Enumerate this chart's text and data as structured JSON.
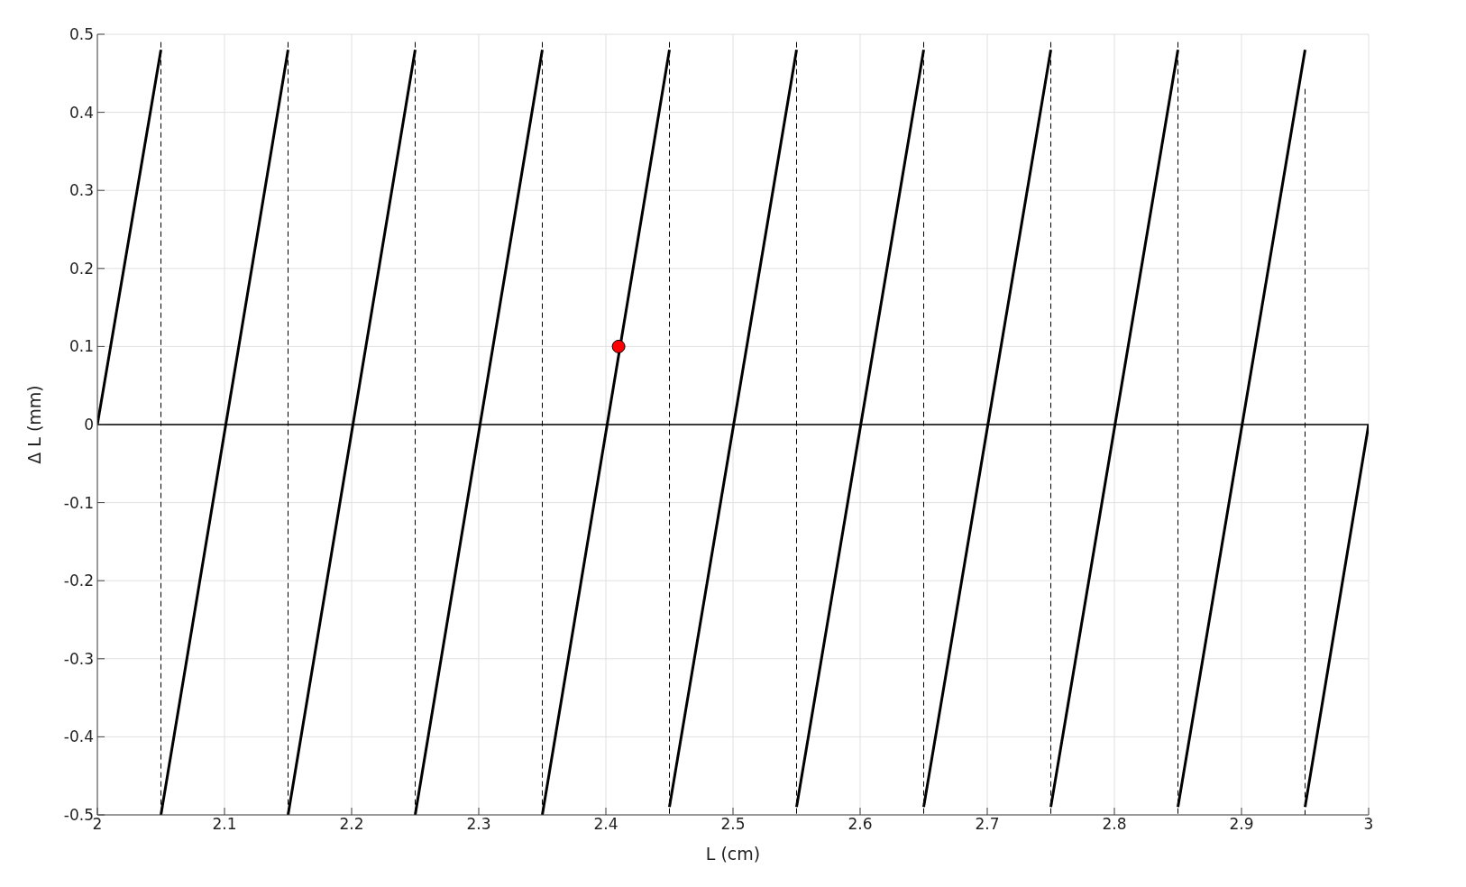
{
  "chart_data": {
    "type": "line",
    "xlabel": "L (cm)",
    "ylabel": "Δ L (mm)",
    "xlim": [
      2,
      3
    ],
    "xticks": [
      2,
      2.1,
      2.2,
      2.3,
      2.4,
      2.5,
      2.6,
      2.7,
      2.8,
      2.9,
      3
    ],
    "ylim": [
      -0.5,
      0.5
    ],
    "yticks": [
      -0.5,
      -0.4,
      -0.3,
      -0.2,
      -0.1,
      0,
      0.1,
      0.2,
      0.3,
      0.4,
      0.5
    ],
    "grid": true,
    "ref_lines": [
      {
        "axis": "y",
        "value": 0,
        "color": "#000000"
      }
    ],
    "series": [
      {
        "color": "#000000",
        "line_style": "solid",
        "x": [
          2,
          2.05
        ],
        "values": [
          0,
          0.48
        ]
      },
      {
        "color": "#000000",
        "line_style": "solid",
        "x": [
          2.05,
          2.15
        ],
        "values": [
          -0.5,
          0.48
        ]
      },
      {
        "color": "#000000",
        "line_style": "solid",
        "x": [
          2.15,
          2.25
        ],
        "values": [
          -0.5,
          0.48
        ]
      },
      {
        "color": "#000000",
        "line_style": "solid",
        "x": [
          2.25,
          2.35
        ],
        "values": [
          -0.5,
          0.48
        ]
      },
      {
        "color": "#000000",
        "line_style": "solid",
        "x": [
          2.35,
          2.45
        ],
        "values": [
          -0.5,
          0.48
        ]
      },
      {
        "color": "#000000",
        "line_style": "solid",
        "x": [
          2.45,
          2.55
        ],
        "values": [
          -0.49,
          0.48
        ]
      },
      {
        "color": "#000000",
        "line_style": "solid",
        "x": [
          2.55,
          2.65
        ],
        "values": [
          -0.49,
          0.48
        ]
      },
      {
        "color": "#000000",
        "line_style": "solid",
        "x": [
          2.65,
          2.75
        ],
        "values": [
          -0.49,
          0.48
        ]
      },
      {
        "color": "#000000",
        "line_style": "solid",
        "x": [
          2.75,
          2.85
        ],
        "values": [
          -0.49,
          0.48
        ]
      },
      {
        "color": "#000000",
        "line_style": "solid",
        "x": [
          2.85,
          2.95
        ],
        "values": [
          -0.49,
          0.48
        ]
      },
      {
        "color": "#000000",
        "line_style": "solid",
        "x": [
          2.95,
          3
        ],
        "values": [
          -0.49,
          0
        ]
      },
      {
        "color": "#000000",
        "line_style": "dashed",
        "x": [
          2.05,
          2.05
        ],
        "values": [
          0.49,
          -0.5
        ]
      },
      {
        "color": "#000000",
        "line_style": "dashed",
        "x": [
          2.15,
          2.15
        ],
        "values": [
          0.49,
          -0.5
        ]
      },
      {
        "color": "#000000",
        "line_style": "dashed",
        "x": [
          2.25,
          2.25
        ],
        "values": [
          0.49,
          -0.5
        ]
      },
      {
        "color": "#000000",
        "line_style": "dashed",
        "x": [
          2.35,
          2.35
        ],
        "values": [
          0.49,
          -0.5
        ]
      },
      {
        "color": "#000000",
        "line_style": "dashed",
        "x": [
          2.45,
          2.45
        ],
        "values": [
          0.49,
          -0.5
        ]
      },
      {
        "color": "#000000",
        "line_style": "dashed",
        "x": [
          2.55,
          2.55
        ],
        "values": [
          0.49,
          -0.5
        ]
      },
      {
        "color": "#000000",
        "line_style": "dashed",
        "x": [
          2.65,
          2.65
        ],
        "values": [
          0.49,
          -0.5
        ]
      },
      {
        "color": "#000000",
        "line_style": "dashed",
        "x": [
          2.75,
          2.75
        ],
        "values": [
          0.49,
          -0.5
        ]
      },
      {
        "color": "#000000",
        "line_style": "dashed",
        "x": [
          2.85,
          2.85
        ],
        "values": [
          0.49,
          -0.5
        ]
      },
      {
        "color": "#000000",
        "line_style": "dashed",
        "x": [
          2.95,
          2.95
        ],
        "values": [
          0.43,
          -0.5
        ]
      },
      {
        "type": "scatter",
        "color": "#ff0000",
        "marker": "circle",
        "x": [
          2.41
        ],
        "values": [
          0.1
        ]
      }
    ]
  }
}
